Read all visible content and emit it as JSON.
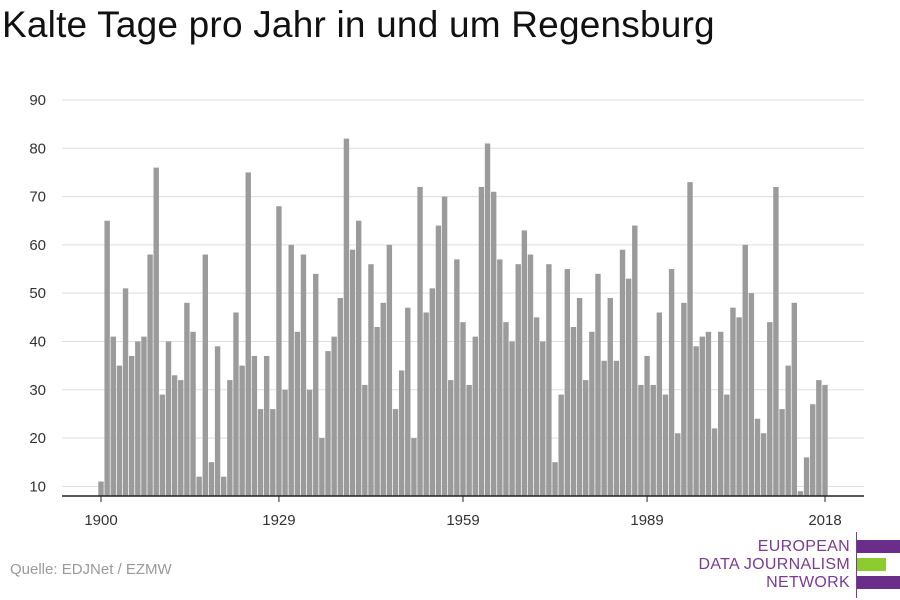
{
  "title": "Kalte Tage pro Jahr in und um Regensburg",
  "source": "Quelle: EDJNet / EZMW",
  "logo": {
    "line1": "EUROPEAN",
    "line2": "DATA JOURNALISM",
    "line3": "NETWORK",
    "colors": {
      "text": "#7a3a96",
      "bar_purple": "#6a2d8a",
      "bar_green": "#8ccc2e"
    }
  },
  "chart_data": {
    "type": "bar",
    "title": "Kalte Tage pro Jahr in und um Regensburg",
    "xlabel": "",
    "ylabel": "",
    "x_range": [
      1900,
      2018
    ],
    "years": [
      1900,
      1901,
      1902,
      1903,
      1904,
      1905,
      1906,
      1907,
      1908,
      1909,
      1910,
      1911,
      1912,
      1913,
      1914,
      1915,
      1916,
      1917,
      1918,
      1919,
      1920,
      1921,
      1922,
      1923,
      1924,
      1925,
      1926,
      1927,
      1928,
      1929,
      1930,
      1931,
      1932,
      1933,
      1934,
      1935,
      1936,
      1937,
      1938,
      1939,
      1940,
      1941,
      1942,
      1943,
      1944,
      1945,
      1946,
      1947,
      1948,
      1949,
      1950,
      1951,
      1952,
      1953,
      1954,
      1955,
      1956,
      1957,
      1958,
      1959,
      1960,
      1961,
      1962,
      1963,
      1964,
      1965,
      1966,
      1967,
      1968,
      1969,
      1970,
      1971,
      1972,
      1973,
      1974,
      1975,
      1976,
      1977,
      1978,
      1979,
      1980,
      1981,
      1982,
      1983,
      1984,
      1985,
      1986,
      1987,
      1988,
      1989,
      1990,
      1991,
      1992,
      1993,
      1994,
      1995,
      1996,
      1997,
      1998,
      1999,
      2000,
      2001,
      2002,
      2003,
      2004,
      2005,
      2006,
      2007,
      2008,
      2009,
      2010,
      2011,
      2012,
      2013,
      2014,
      2015,
      2016,
      2017,
      2018
    ],
    "values": [
      11,
      65,
      41,
      35,
      51,
      37,
      40,
      41,
      58,
      76,
      29,
      40,
      33,
      32,
      48,
      42,
      12,
      58,
      15,
      39,
      12,
      32,
      46,
      35,
      75,
      37,
      26,
      37,
      26,
      68,
      30,
      60,
      42,
      58,
      30,
      54,
      20,
      38,
      41,
      49,
      82,
      59,
      65,
      31,
      56,
      43,
      48,
      60,
      26,
      34,
      47,
      20,
      72,
      46,
      51,
      64,
      70,
      32,
      57,
      44,
      31,
      41,
      72,
      81,
      71,
      57,
      44,
      40,
      56,
      63,
      58,
      45,
      40,
      56,
      15,
      29,
      55,
      43,
      49,
      32,
      42,
      54,
      36,
      49,
      36,
      59,
      53,
      64,
      31,
      37,
      31,
      46,
      29,
      55,
      21,
      48,
      73,
      39,
      41,
      42,
      22,
      42,
      29,
      47,
      45,
      60,
      50,
      24,
      21,
      44,
      72,
      26,
      35,
      48,
      9,
      16,
      27,
      32,
      31
    ],
    "ylim": [
      8,
      90
    ],
    "yticks": [
      10,
      20,
      30,
      40,
      50,
      60,
      70,
      80,
      90
    ],
    "xticks": [
      1900,
      1929,
      1959,
      1989,
      2018
    ],
    "bar_color": "#9b9b9b",
    "grid": true
  }
}
